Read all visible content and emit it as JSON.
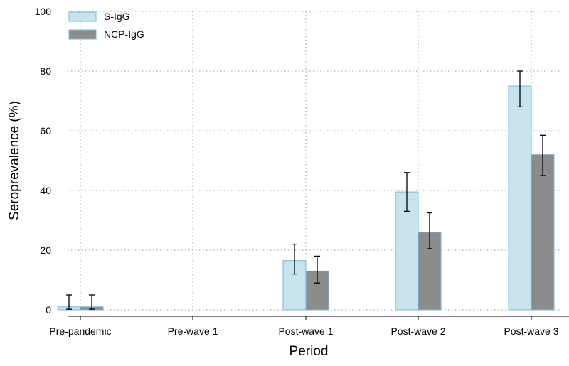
{
  "chart_data": {
    "type": "bar",
    "xlabel": "Period",
    "ylabel": "Seroprevalence (%)",
    "ylim": [
      0,
      100
    ],
    "yticks": [
      0,
      20,
      40,
      60,
      80,
      100
    ],
    "grid": "dotted, both axes",
    "legend_position": "top-left",
    "categories": [
      "Pre-pandemic",
      "Pre-wave 1",
      "Post-wave 1",
      "Post-wave 2",
      "Post-wave 3"
    ],
    "series": [
      {
        "name": "S-IgG",
        "color": "#c6e3ee",
        "edge_color": "#75b9d9",
        "values": [
          1,
          null,
          16.5,
          39.5,
          75
        ],
        "ci_low": [
          0.2,
          null,
          12,
          33,
          68
        ],
        "ci_high": [
          5,
          null,
          22,
          46,
          80
        ]
      },
      {
        "name": "NCP-IgG",
        "color": "#8c8c8c",
        "edge_color": "#75b9d9",
        "values": [
          1,
          null,
          13,
          26,
          52
        ],
        "ci_low": [
          0.2,
          null,
          9,
          20.5,
          45
        ],
        "ci_high": [
          5,
          null,
          18,
          32.5,
          58.5
        ]
      }
    ]
  }
}
